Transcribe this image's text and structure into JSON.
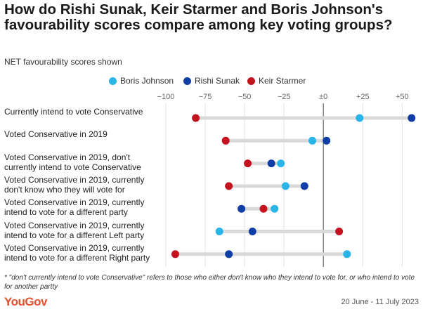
{
  "title": "How do Rishi Sunak, Keir Starmer and Boris Johnson's favourability scores compare among key voting groups?",
  "subtitle": "NET favourability scores shown",
  "footnote": "* \"don't currently intend to vote Conservative\" refers to those who either don't know who they intend to vote for, or who intend to vote for another partty",
  "brand": "YouGov",
  "date_range": "20 June - 11 July 2023",
  "colors": {
    "boris": "#29b5e8",
    "rishi": "#0f3fa6",
    "keir": "#c4121f",
    "connector": "#d9d9d9",
    "grid": "#e3e3e3",
    "zero_line": "#666666",
    "brand": "#e5502e"
  },
  "chart_data": {
    "type": "dot-plot",
    "x_ticks": [
      -100,
      -75,
      -50,
      -25,
      0,
      25,
      50
    ],
    "x_tick_labels": [
      "−100",
      "−75",
      "−50",
      "−25",
      "±0",
      "+25",
      "+50"
    ],
    "xlim": [
      -100,
      57
    ],
    "grid": true,
    "legend_position": "top",
    "series": [
      {
        "name": "Boris Johnson",
        "key": "boris",
        "color": "#29b5e8",
        "values": [
          23,
          -7,
          -27,
          -24,
          -31,
          -66,
          15
        ]
      },
      {
        "name": "Rishi Sunak",
        "key": "rishi",
        "color": "#0f3fa6",
        "values": [
          56,
          2,
          -33,
          -12,
          -52,
          -45,
          -60
        ]
      },
      {
        "name": "Keir Starmer",
        "key": "keir",
        "color": "#c4121f",
        "values": [
          -81,
          -62,
          -48,
          -60,
          -38,
          10,
          -94
        ]
      }
    ],
    "categories": [
      "Currently intend to vote Conservative",
      "Voted Conservative in 2019",
      "Voted Conservative in 2019, don't currently intend to vote Conservative",
      "Voted Conservative in 2019, currently don't know who they will vote for",
      "Voted Conservative in 2019, currently intend to vote for a different party",
      "Voted Conservative in 2019, currently intend to vote for a different Left party",
      "Voted Conservative in 2019, currently intend to vote for a different Right party"
    ]
  }
}
